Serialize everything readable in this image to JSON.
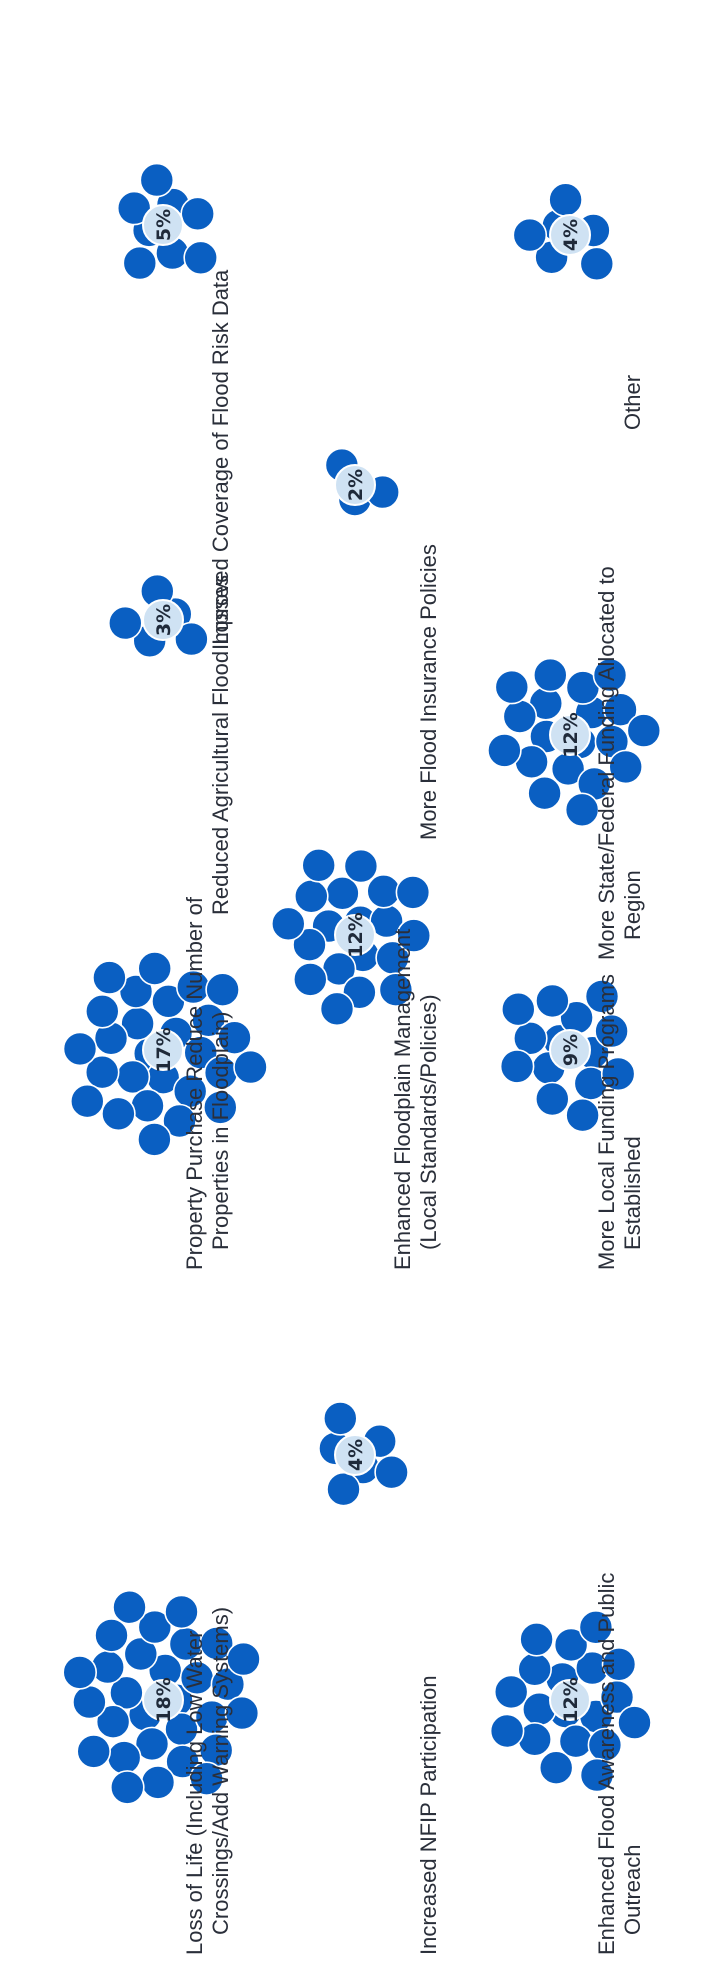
{
  "chart_data": {
    "type": "bubble-cluster",
    "colors": {
      "bubble": "#0a5fc2",
      "badge": "#cfe2f3",
      "text": "#2a2f3a"
    },
    "categories": [
      {
        "lines": [
          "Loss of Life (Including Low Water",
          "Crossings/Add Warning Systems)"
        ],
        "percent_label": "18%",
        "value": 18
      },
      {
        "lines": [
          "Increased NFIP Participation"
        ],
        "percent_label": "4%",
        "value": 4
      },
      {
        "lines": [
          "Enhanced Flood Awareness and Public",
          "Outreach"
        ],
        "percent_label": "12%",
        "value": 12
      },
      {
        "lines": [
          "Property Purchase Reduce Number of",
          "Properties in Floodplain)"
        ],
        "percent_label": "17%",
        "value": 17
      },
      {
        "lines": [
          "More Local Funding Programs",
          "Established"
        ],
        "percent_label": "9%",
        "value": 9
      },
      {
        "lines": [
          "Enhanced Floodplain Management",
          "(Local Standards/Policies)"
        ],
        "percent_label": "12%",
        "value": 12
      },
      {
        "lines": [
          "Reduced Agricultural Flood Losses"
        ],
        "percent_label": "3%",
        "value": 3
      },
      {
        "lines": [
          "More State/Federal Funding Allocated to",
          "Region"
        ],
        "percent_label": "12%",
        "value": 12
      },
      {
        "lines": [
          "More Flood Insurance Policies"
        ],
        "percent_label": "2%",
        "value": 2
      },
      {
        "lines": [
          "Improved Coverage of Flood Risk Data"
        ],
        "percent_label": "5%",
        "value": 5
      },
      {
        "lines": [
          "Other"
        ],
        "percent_label": "4%",
        "value": 4
      }
    ]
  }
}
